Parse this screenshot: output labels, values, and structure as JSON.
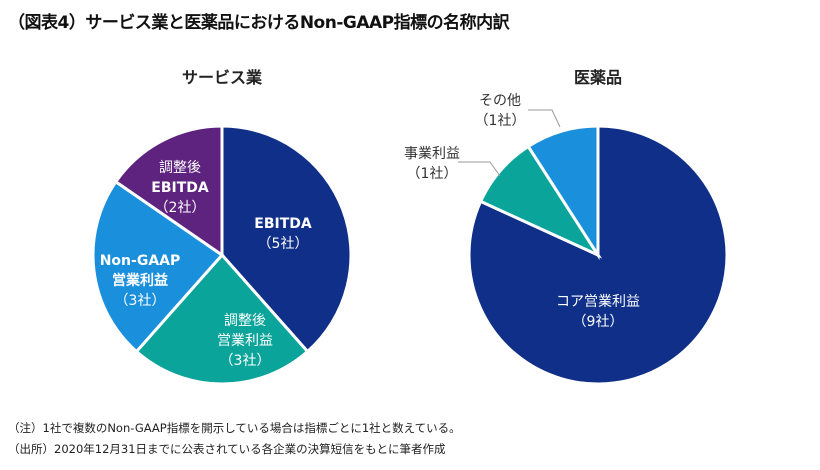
{
  "title": "（図表4）サービス業と医薬品におけるNon-GAAP指標の名称内訳",
  "chart_data": [
    {
      "type": "pie",
      "title": "サービス業",
      "slices": [
        {
          "label": [
            "EBITDA",
            "（5社）"
          ],
          "value": 5,
          "color": "#0f2f88"
        },
        {
          "label": [
            "調整後",
            "営業利益",
            "（3社）"
          ],
          "value": 3,
          "color": "#0aa49a"
        },
        {
          "label": [
            "Non-GAAP",
            "営業利益",
            "（3社）"
          ],
          "value": 3,
          "color": "#1a8fdc"
        },
        {
          "label": [
            "調整後",
            "EBITDA",
            "（2社）"
          ],
          "value": 2,
          "color": "#5d237e"
        }
      ]
    },
    {
      "type": "pie",
      "title": "医薬品",
      "slices": [
        {
          "label": [
            "コア営業利益",
            "（9社）"
          ],
          "value": 9,
          "color": "#0f2f88"
        },
        {
          "label": [
            "事業利益",
            "（1社）"
          ],
          "value": 1,
          "color": "#0aa49a"
        },
        {
          "label": [
            "その他",
            "（1社）"
          ],
          "value": 1,
          "color": "#1a8fdc"
        }
      ]
    }
  ],
  "notes": [
    "（注）1社で複数のNon-GAAP指標を開示している場合は指標ごとに1社と数えている。",
    "（出所）2020年12月31日までに公表されている各企業の決算短信をもとに筆者作成"
  ]
}
